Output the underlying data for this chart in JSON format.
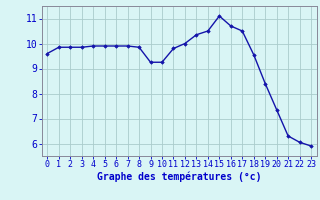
{
  "x": [
    0,
    1,
    2,
    3,
    4,
    5,
    6,
    7,
    8,
    9,
    10,
    11,
    12,
    13,
    14,
    15,
    16,
    17,
    18,
    19,
    20,
    21,
    22,
    23
  ],
  "y": [
    9.6,
    9.85,
    9.85,
    9.85,
    9.9,
    9.9,
    9.9,
    9.9,
    9.85,
    9.25,
    9.25,
    9.8,
    10.0,
    10.35,
    10.5,
    11.1,
    10.7,
    10.5,
    9.55,
    8.4,
    7.35,
    6.3,
    6.05,
    5.9
  ],
  "line_color": "#1414aa",
  "marker": "D",
  "marker_size": 1.8,
  "bg_color": "#d9f5f5",
  "grid_color": "#aacccc",
  "xlabel": "Graphe des températures (°c)",
  "xlabel_fontsize": 7,
  "xlabel_color": "#0000cc",
  "xtick_labels": [
    "0",
    "1",
    "2",
    "3",
    "4",
    "5",
    "6",
    "7",
    "8",
    "9",
    "10",
    "11",
    "12",
    "13",
    "14",
    "15",
    "16",
    "17",
    "18",
    "19",
    "20",
    "21",
    "22",
    "23"
  ],
  "ytick_values": [
    6,
    7,
    8,
    9,
    10,
    11
  ],
  "ylim": [
    5.5,
    11.5
  ],
  "xlim": [
    -0.5,
    23.5
  ],
  "tick_color": "#0000cc",
  "tick_fontsize": 6,
  "ytick_fontsize": 7,
  "spine_color": "#888899",
  "linewidth": 1.0
}
